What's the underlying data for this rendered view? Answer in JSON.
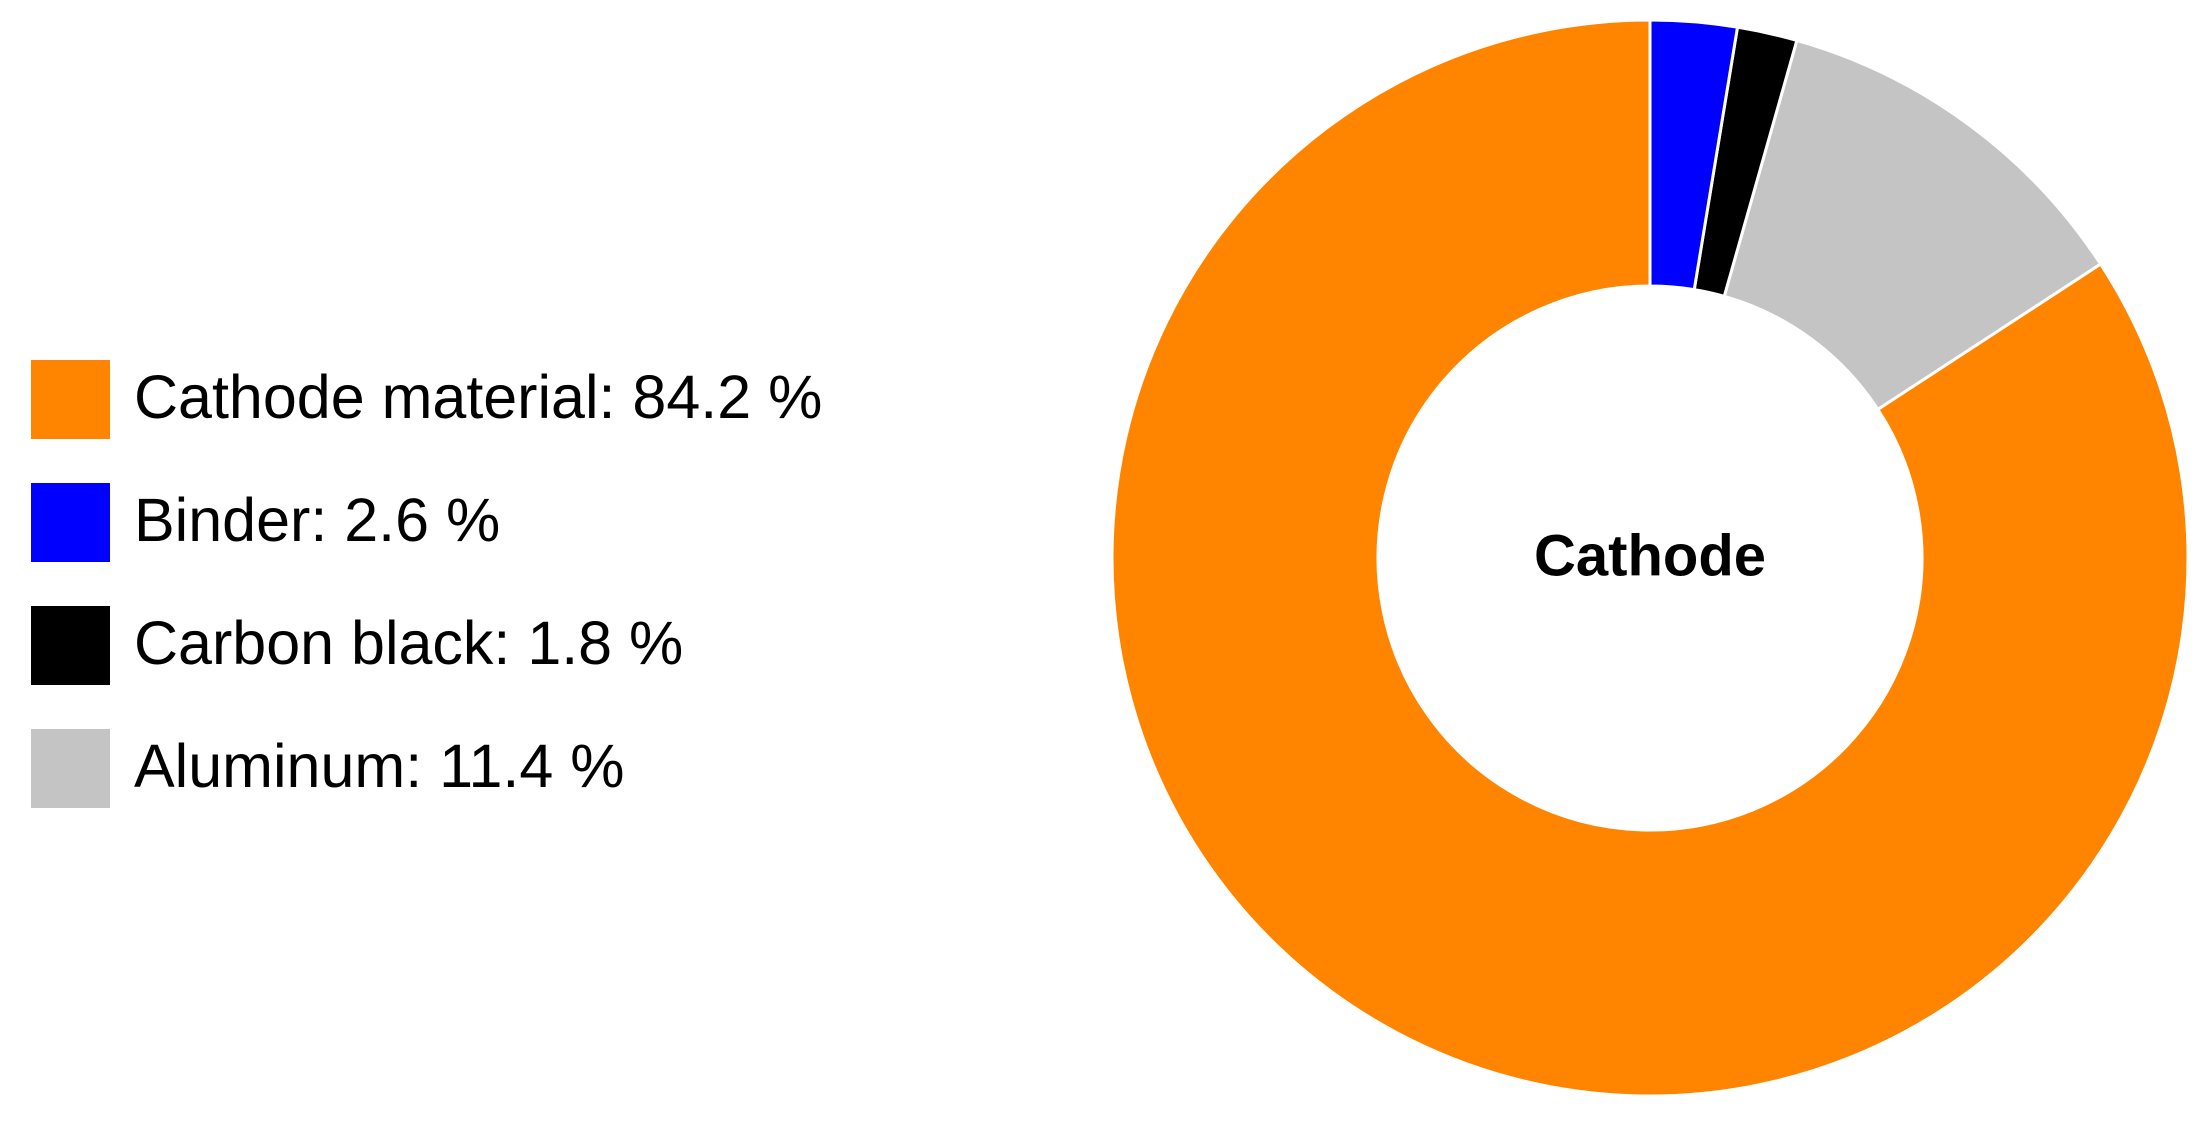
{
  "chart_data": {
    "type": "donut",
    "center_label": "Cathode",
    "categories": [
      "Cathode material: 84.2 %",
      "Binder: 2.6 %",
      "Carbon black: 1.8 %",
      "Aluminum: 11.4 %"
    ],
    "values": [
      84.2,
      2.6,
      1.8,
      11.4
    ],
    "colors": [
      "#ff8500",
      "#0000ff",
      "#000000",
      "#c4c4c4"
    ]
  }
}
